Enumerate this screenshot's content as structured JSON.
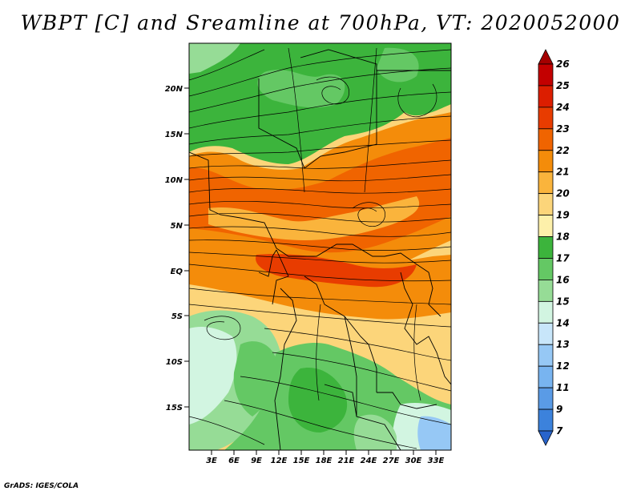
{
  "title": "WBPT [C] and Sreamline at 700hPa, VT: 2020052000",
  "credit": "GrADS: IGES/COLA",
  "lat_labels": [
    "20N",
    "15N",
    "10N",
    "5N",
    "EQ",
    "5S",
    "10S",
    "15S"
  ],
  "lon_labels": [
    "3E",
    "6E",
    "9E",
    "12E",
    "15E",
    "18E",
    "21E",
    "24E",
    "27E",
    "30E",
    "33E"
  ],
  "colorbar": {
    "labels": [
      "26",
      "25",
      "24",
      "23",
      "22",
      "21",
      "20",
      "19",
      "18",
      "17",
      "16",
      "15",
      "14",
      "13",
      "12",
      "11",
      "9",
      "7"
    ],
    "colors": [
      "#a50000",
      "#c30000",
      "#dc1e00",
      "#e83c00",
      "#f06400",
      "#f48c0a",
      "#fab43c",
      "#fcd57a",
      "#fdf0aa",
      "#3cb43c",
      "#64c864",
      "#96dc96",
      "#d2f5e1",
      "#c8e6fa",
      "#96c8f5",
      "#78b4f0",
      "#5a9be6",
      "#3c82dc",
      "#2864cc"
    ]
  },
  "map": {
    "lat_range": [
      -20,
      25
    ],
    "lon_range": [
      0,
      35
    ],
    "field": "wet-bulb potential temperature",
    "level": "700hPa"
  }
}
